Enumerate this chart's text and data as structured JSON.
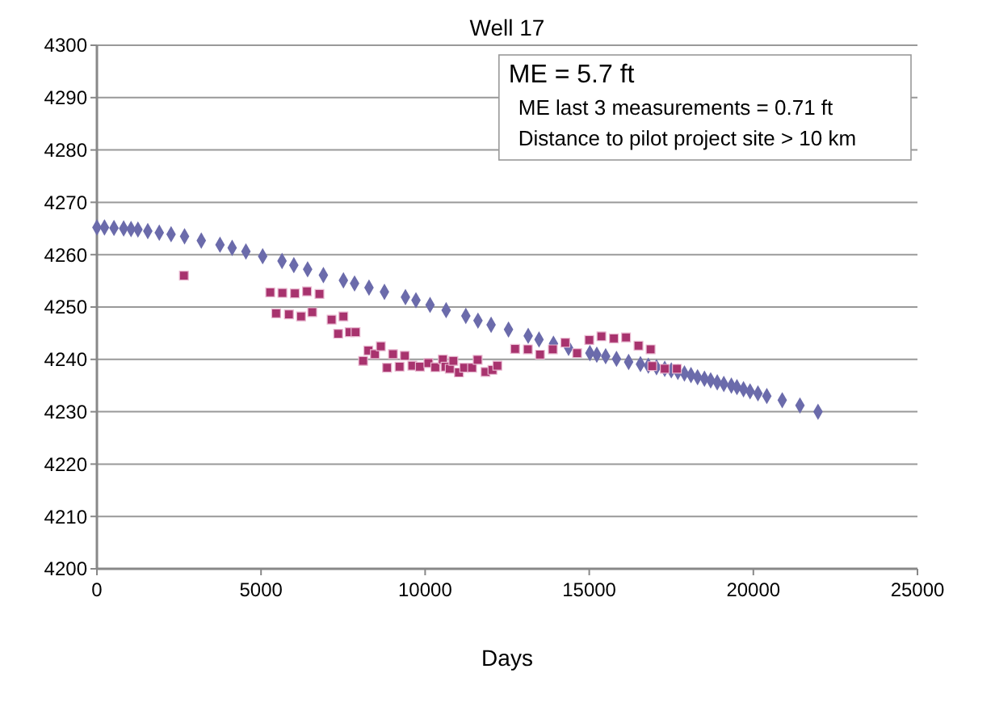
{
  "chart_data": {
    "type": "scatter",
    "title": "Well 17",
    "xlabel": "Days",
    "xlim": [
      0,
      25000
    ],
    "xticks": [
      0,
      5000,
      10000,
      15000,
      20000,
      25000
    ],
    "ylim": [
      4200,
      4300
    ],
    "yticks": [
      4200,
      4210,
      4220,
      4230,
      4240,
      4250,
      4260,
      4270,
      4280,
      4290,
      4300
    ],
    "grid": "y",
    "annotations": [
      "ME = 5.7 ft",
      "ME last 3 measurements = 0.71 ft",
      "Distance to pilot project site > 10 km"
    ],
    "series": [
      {
        "color": "#6b6bab",
        "marker": "diamond",
        "x": [
          0,
          230,
          520,
          815,
          1040,
          1250,
          1550,
          1900,
          2260,
          2670,
          3180,
          3750,
          4120,
          4540,
          5050,
          5640,
          6000,
          6420,
          6900,
          7510,
          7850,
          8290,
          8760,
          9400,
          9720,
          10150,
          10640,
          11240,
          11610,
          12010,
          12540,
          13140,
          13470,
          13910,
          14370,
          15020,
          15230,
          15500,
          15830,
          16200,
          16560,
          16800,
          17050,
          17300,
          17500,
          17700,
          17900,
          18100,
          18300,
          18510,
          18700,
          18900,
          19100,
          19330,
          19500,
          19700,
          19900,
          20140,
          20410,
          20880,
          21420,
          21970
        ],
        "values": [
          4265.2,
          4265.2,
          4265.1,
          4265,
          4264.9,
          4264.8,
          4264.5,
          4264.2,
          4263.9,
          4263.5,
          4262.7,
          4261.9,
          4261.3,
          4260.6,
          4259.7,
          4258.8,
          4258,
          4257.2,
          4256.1,
          4255.1,
          4254.5,
          4253.7,
          4252.9,
          4251.9,
          4251.3,
          4250.4,
          4249.4,
          4248.3,
          4247.4,
          4246.6,
          4245.7,
          4244.5,
          4243.8,
          4243,
          4242.2,
          4241.2,
          4240.9,
          4240.6,
          4240.1,
          4239.5,
          4239.1,
          4238.8,
          4238.5,
          4238.2,
          4237.9,
          4237.6,
          4237.3,
          4237,
          4236.6,
          4236.3,
          4236,
          4235.6,
          4235.3,
          4235,
          4234.7,
          4234.3,
          4233.9,
          4233.5,
          4233,
          4232.2,
          4231.2,
          4230
        ]
      },
      {
        "color": "#a8336e",
        "marker": "square",
        "x": [
          2650,
          5280,
          5650,
          6030,
          6400,
          6780,
          5460,
          5850,
          6220,
          6560,
          7150,
          7510,
          7350,
          7700,
          7880,
          8110,
          8270,
          8470,
          8650,
          8840,
          9020,
          9220,
          9380,
          9610,
          9840,
          10100,
          10310,
          10540,
          10620,
          10750,
          10860,
          11030,
          11190,
          11430,
          11600,
          11840,
          12050,
          12200,
          12740,
          13130,
          13500,
          13890,
          14270,
          14630,
          15000,
          15370,
          15750,
          16120,
          16500,
          16870,
          16920,
          17300,
          17670
        ],
        "values": [
          4256,
          4252.8,
          4252.7,
          4252.6,
          4253,
          4252.5,
          4248.8,
          4248.6,
          4248.2,
          4249,
          4247.6,
          4248.2,
          4244.9,
          4245.2,
          4245.2,
          4239.7,
          4241.7,
          4241,
          4242.5,
          4238.4,
          4241,
          4238.6,
          4240.7,
          4238.8,
          4238.6,
          4239.3,
          4238.5,
          4240,
          4238.6,
          4238.2,
          4239.7,
          4237.5,
          4238.4,
          4238.4,
          4239.9,
          4237.6,
          4238,
          4238.8,
          4242,
          4241.9,
          4240.9,
          4241.9,
          4243.2,
          4241.2,
          4243.7,
          4244.4,
          4244,
          4244.2,
          4242.6,
          4241.9,
          4238.7,
          4238.2,
          4238.2
        ]
      }
    ]
  }
}
